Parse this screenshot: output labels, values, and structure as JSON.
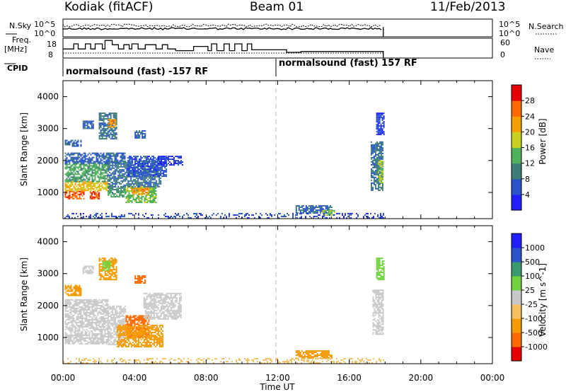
{
  "header": {
    "site": "Kodiak (fitACF)",
    "beam": "Beam 01",
    "date": "11/Feb/2013"
  },
  "left_labels": {
    "nsky": "N.Sky",
    "freq_line1": "Freq.",
    "freq_line2": "[MHz]",
    "cpid": "CPID"
  },
  "right_labels": {
    "nsearch": "N.Search",
    "nave": "Nave"
  },
  "noise_panel": {
    "left_ticks": [
      "10^5",
      "10^0"
    ],
    "right_ticks": [
      "10^5",
      "10^0"
    ]
  },
  "freq_panel": {
    "left_ticks": [
      "18",
      "8"
    ],
    "right_ticks": [
      "60",
      "0"
    ],
    "freq_steps": [
      {
        "start_h": 0.0,
        "end_h": 0.6,
        "level": 0.45
      },
      {
        "start_h": 0.6,
        "end_h": 0.85,
        "level": 0.75
      },
      {
        "start_h": 0.85,
        "end_h": 1.25,
        "level": 0.45
      },
      {
        "start_h": 1.25,
        "end_h": 1.55,
        "level": 0.75
      },
      {
        "start_h": 1.55,
        "end_h": 1.8,
        "level": 0.45
      },
      {
        "start_h": 1.8,
        "end_h": 2.2,
        "level": 0.75
      },
      {
        "start_h": 2.2,
        "end_h": 2.35,
        "level": 0.45
      },
      {
        "start_h": 2.35,
        "end_h": 2.75,
        "level": 0.95
      },
      {
        "start_h": 2.75,
        "end_h": 3.1,
        "level": 0.7
      },
      {
        "start_h": 3.1,
        "end_h": 3.4,
        "level": 0.45
      },
      {
        "start_h": 3.4,
        "end_h": 3.7,
        "level": 0.7
      },
      {
        "start_h": 3.7,
        "end_h": 3.85,
        "level": 0.45
      },
      {
        "start_h": 3.85,
        "end_h": 4.2,
        "level": 0.75
      },
      {
        "start_h": 4.2,
        "end_h": 4.6,
        "level": 0.45
      },
      {
        "start_h": 4.6,
        "end_h": 5.2,
        "level": 0.7
      },
      {
        "start_h": 5.2,
        "end_h": 5.55,
        "level": 0.45
      },
      {
        "start_h": 5.55,
        "end_h": 5.85,
        "level": 0.7
      },
      {
        "start_h": 5.85,
        "end_h": 6.3,
        "level": 0.45
      },
      {
        "start_h": 6.3,
        "end_h": 7.3,
        "level": 0.35
      },
      {
        "start_h": 7.3,
        "end_h": 8.1,
        "level": 0.6
      },
      {
        "start_h": 8.1,
        "end_h": 8.3,
        "level": 0.35
      },
      {
        "start_h": 8.3,
        "end_h": 8.6,
        "level": 0.75
      },
      {
        "start_h": 8.6,
        "end_h": 9.0,
        "level": 0.35
      },
      {
        "start_h": 9.0,
        "end_h": 9.3,
        "level": 0.75
      },
      {
        "start_h": 9.3,
        "end_h": 9.6,
        "level": 0.35
      },
      {
        "start_h": 9.6,
        "end_h": 10.0,
        "level": 0.75
      },
      {
        "start_h": 10.0,
        "end_h": 10.3,
        "level": 0.35
      },
      {
        "start_h": 10.3,
        "end_h": 10.55,
        "level": 0.75
      },
      {
        "start_h": 10.55,
        "end_h": 12.5,
        "level": 0.4
      },
      {
        "start_h": 12.5,
        "end_h": 13.3,
        "level": 0.25
      },
      {
        "start_h": 13.3,
        "end_h": 14.5,
        "level": 0.3
      },
      {
        "start_h": 14.5,
        "end_h": 17.9,
        "level": 0.3
      }
    ]
  },
  "cpid_panel": {
    "programs": [
      {
        "label": "normalsound (fast) -157 RF",
        "start_h": 0.0
      },
      {
        "label": "normalsound (fast) 157 RF",
        "start_h": 12.0
      }
    ]
  },
  "chart_data": [
    {
      "type": "heatmap",
      "parameter": "Power",
      "title": "",
      "xlabel": "",
      "ylabel": "Slant Range [km]",
      "ylim": [
        180,
        4500
      ],
      "yticks": [
        1000,
        2000,
        3000,
        4000
      ],
      "xlim_hours": [
        0,
        24
      ],
      "colorbar": {
        "label": "Power [dB]",
        "ticks": [
          "4",
          "8",
          "12",
          "16",
          "20",
          "24",
          "28"
        ],
        "levels": [
          {
            "value": 2,
            "color": "#1f1fff"
          },
          {
            "value": 6,
            "color": "#2a55c8"
          },
          {
            "value": 10,
            "color": "#3c7d78"
          },
          {
            "value": 14,
            "color": "#4fb15a"
          },
          {
            "value": 18,
            "color": "#c8d21e"
          },
          {
            "value": 22,
            "color": "#f5a000"
          },
          {
            "value": 26,
            "color": "#ff6a00"
          },
          {
            "value": 30,
            "color": "#e60000"
          }
        ]
      },
      "regions": [
        {
          "t0": 0.1,
          "t1": 1.2,
          "r0": 800,
          "r1": 1050,
          "value": 27
        },
        {
          "t0": 1.5,
          "t1": 2.0,
          "r0": 800,
          "r1": 1050,
          "value": 27
        },
        {
          "t0": 0.1,
          "t1": 2.5,
          "r0": 1050,
          "r1": 1350,
          "value": 20
        },
        {
          "t0": 0.1,
          "t1": 2.5,
          "r0": 1350,
          "r1": 1900,
          "value": 13
        },
        {
          "t0": 0.1,
          "t1": 3.5,
          "r0": 1900,
          "r1": 2250,
          "value": 7
        },
        {
          "t0": 0.1,
          "t1": 1.0,
          "r0": 2450,
          "r1": 2650,
          "value": 7
        },
        {
          "t0": 2.5,
          "t1": 3.5,
          "r0": 850,
          "r1": 1200,
          "value": 11
        },
        {
          "t0": 3.5,
          "t1": 5.2,
          "r0": 700,
          "r1": 1200,
          "value": 15
        },
        {
          "t0": 3.8,
          "t1": 4.8,
          "r0": 950,
          "r1": 1150,
          "value": 23
        },
        {
          "t0": 2.5,
          "t1": 5.5,
          "r0": 1200,
          "r1": 2000,
          "value": 9
        },
        {
          "t0": 3.6,
          "t1": 5.8,
          "r0": 1500,
          "r1": 2150,
          "value": 6
        },
        {
          "t0": 2.0,
          "t1": 3.0,
          "r0": 2700,
          "r1": 3500,
          "value": 9
        },
        {
          "t0": 2.5,
          "t1": 2.9,
          "r0": 3050,
          "r1": 3300,
          "value": 22
        },
        {
          "t0": 1.1,
          "t1": 1.7,
          "r0": 3000,
          "r1": 3250,
          "value": 7
        },
        {
          "t0": 4.0,
          "t1": 4.6,
          "r0": 2700,
          "r1": 2950,
          "value": 7
        },
        {
          "t0": 5.3,
          "t1": 6.7,
          "r0": 1850,
          "r1": 2150,
          "value": 4
        },
        {
          "t0": 17.2,
          "t1": 17.9,
          "r0": 1050,
          "r1": 2600,
          "value": 9
        },
        {
          "t0": 17.6,
          "t1": 17.9,
          "r0": 1300,
          "r1": 2000,
          "value": 16
        },
        {
          "t0": 17.5,
          "t1": 17.9,
          "r0": 2800,
          "r1": 3500,
          "value": 5
        },
        {
          "t0": 13.0,
          "t1": 15.0,
          "r0": 350,
          "r1": 600,
          "value": 8
        },
        {
          "t0": 14.5,
          "t1": 15.2,
          "r0": 300,
          "r1": 450,
          "value": 16
        },
        {
          "t0": 0.0,
          "t1": 17.9,
          "r0": 180,
          "r1": 360,
          "value": 5
        }
      ]
    },
    {
      "type": "heatmap",
      "parameter": "Velocity",
      "title": "",
      "xlabel": "Time UT",
      "ylabel": "Slant Range [km]",
      "ylim": [
        180,
        4500
      ],
      "yticks": [
        1000,
        2000,
        3000,
        4000
      ],
      "xlim_hours": [
        0,
        24
      ],
      "xticks": [
        "00:00",
        "04:00",
        "08:00",
        "12:00",
        "16:00",
        "20:00",
        "00:00"
      ],
      "colorbar": {
        "label": "Velocity [m s^-1]",
        "ticks": [
          "-1000",
          "-500",
          "-100",
          "-25",
          "25",
          "100",
          "500",
          "1000"
        ],
        "levels": [
          {
            "value": -1200,
            "color": "#e60000"
          },
          {
            "value": -700,
            "color": "#ff6a00"
          },
          {
            "value": -300,
            "color": "#f59a00"
          },
          {
            "value": -60,
            "color": "#f5c060"
          },
          {
            "value": 0,
            "color": "#c8c8c8"
          },
          {
            "value": 60,
            "color": "#70d23c"
          },
          {
            "value": 300,
            "color": "#3a9a6e"
          },
          {
            "value": 700,
            "color": "#2a55c8"
          },
          {
            "value": 1200,
            "color": "#1f1fff"
          }
        ]
      },
      "regions": [
        {
          "t0": 0.1,
          "t1": 2.5,
          "r0": 800,
          "r1": 2200,
          "value": 0
        },
        {
          "t0": 2.5,
          "t1": 3.5,
          "r0": 800,
          "r1": 2000,
          "value": 0
        },
        {
          "t0": 3.5,
          "t1": 4.8,
          "r0": 1000,
          "r1": 1700,
          "value": -700
        },
        {
          "t0": 3.0,
          "t1": 5.6,
          "r0": 700,
          "r1": 1400,
          "value": -300
        },
        {
          "t0": 4.5,
          "t1": 6.6,
          "r0": 1600,
          "r1": 2400,
          "value": 0
        },
        {
          "t0": 0.1,
          "t1": 1.0,
          "r0": 2300,
          "r1": 2650,
          "value": -300
        },
        {
          "t0": 2.0,
          "t1": 3.0,
          "r0": 2800,
          "r1": 3500,
          "value": -300
        },
        {
          "t0": 2.2,
          "t1": 2.6,
          "r0": 3100,
          "r1": 3400,
          "value": 60
        },
        {
          "t0": 1.1,
          "t1": 1.7,
          "r0": 3000,
          "r1": 3250,
          "value": 0
        },
        {
          "t0": 4.0,
          "t1": 4.6,
          "r0": 2700,
          "r1": 2950,
          "value": -700
        },
        {
          "t0": 17.3,
          "t1": 17.9,
          "r0": 1100,
          "r1": 2500,
          "value": 0
        },
        {
          "t0": 17.5,
          "t1": 17.9,
          "r0": 2800,
          "r1": 3500,
          "value": 60
        },
        {
          "t0": 13.0,
          "t1": 15.0,
          "r0": 350,
          "r1": 600,
          "value": -300
        },
        {
          "t0": 0.0,
          "t1": 17.9,
          "r0": 180,
          "r1": 360,
          "value": -60
        }
      ]
    }
  ]
}
